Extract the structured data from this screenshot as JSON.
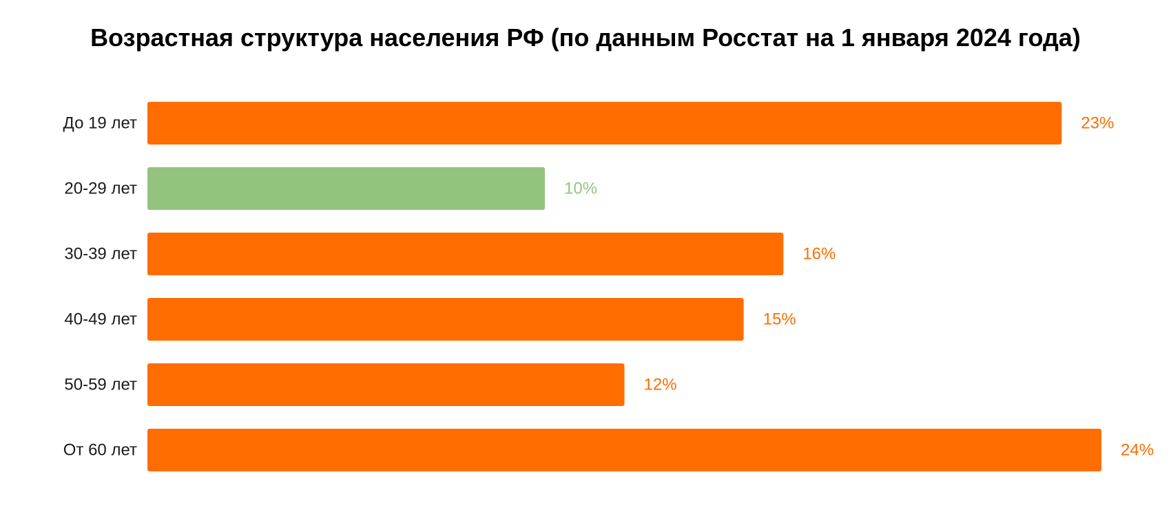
{
  "chart_data": {
    "type": "bar",
    "orientation": "horizontal",
    "title": "Возрастная структура населения РФ (по данным Росстат на 1 января 2024 года)",
    "categories": [
      "До 19 лет",
      "20-29 лет",
      "30-39 лет",
      "40-49 лет",
      "50-59 лет",
      "От 60 лет"
    ],
    "values": [
      23,
      10,
      16,
      15,
      12,
      24
    ],
    "value_labels": [
      "23%",
      "10%",
      "16%",
      "15%",
      "12%",
      "24%"
    ],
    "colors": [
      "#FF6D00",
      "#93C47D",
      "#FF6D00",
      "#FF6D00",
      "#FF6D00",
      "#FF6D00"
    ],
    "xlabel": "",
    "ylabel": "",
    "xlim": [
      0,
      24
    ],
    "grid": false,
    "legend": "none"
  }
}
